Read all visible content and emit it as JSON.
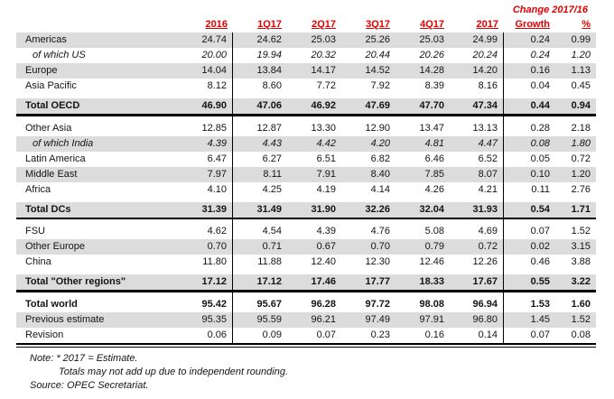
{
  "colors": {
    "accent_red": "#e00000",
    "band_gray": "#dcdcdc",
    "border_black": "#000000"
  },
  "header": {
    "change_title": "Change 2017/16",
    "columns": [
      "2016",
      "1Q17",
      "2Q17",
      "3Q17",
      "4Q17",
      "2017",
      "Growth",
      "%"
    ]
  },
  "table": {
    "rows": [
      {
        "label": "Americas",
        "band": true,
        "values": [
          "24.74",
          "24.62",
          "25.03",
          "25.26",
          "25.03",
          "24.99",
          "0.24",
          "0.99"
        ]
      },
      {
        "label": "of which US",
        "italic": true,
        "values": [
          "20.00",
          "19.94",
          "20.32",
          "20.44",
          "20.26",
          "20.24",
          "0.24",
          "1.20"
        ]
      },
      {
        "label": "Europe",
        "band": true,
        "values": [
          "14.04",
          "13.84",
          "14.17",
          "14.52",
          "14.28",
          "14.20",
          "0.16",
          "1.13"
        ]
      },
      {
        "label": "Asia Pacific",
        "values": [
          "8.12",
          "8.60",
          "7.72",
          "7.92",
          "8.39",
          "8.16",
          "0.04",
          "0.45"
        ]
      },
      {
        "label": "Total OECD",
        "band": true,
        "bold": true,
        "gap_before": true,
        "divider_after": "thick",
        "values": [
          "46.90",
          "47.06",
          "46.92",
          "47.69",
          "47.70",
          "47.34",
          "0.44",
          "0.94"
        ]
      },
      {
        "label": "Other Asia",
        "gap_before": true,
        "values": [
          "12.85",
          "12.87",
          "13.30",
          "12.90",
          "13.47",
          "13.13",
          "0.28",
          "2.18"
        ]
      },
      {
        "label": "of which India",
        "band": true,
        "italic": true,
        "values": [
          "4.39",
          "4.43",
          "4.42",
          "4.20",
          "4.81",
          "4.47",
          "0.08",
          "1.80"
        ]
      },
      {
        "label": "Latin America",
        "values": [
          "6.47",
          "6.27",
          "6.51",
          "6.82",
          "6.46",
          "6.52",
          "0.05",
          "0.72"
        ]
      },
      {
        "label": "Middle East",
        "band": true,
        "values": [
          "7.97",
          "8.11",
          "7.91",
          "8.40",
          "7.85",
          "8.07",
          "0.10",
          "1.20"
        ]
      },
      {
        "label": "Africa",
        "values": [
          "4.10",
          "4.25",
          "4.19",
          "4.14",
          "4.26",
          "4.21",
          "0.11",
          "2.76"
        ]
      },
      {
        "label": "Total DCs",
        "band": true,
        "bold": true,
        "gap_before": true,
        "divider_after": "thick",
        "values": [
          "31.39",
          "31.49",
          "31.90",
          "32.26",
          "32.04",
          "31.93",
          "0.54",
          "1.71"
        ]
      },
      {
        "label": "FSU",
        "gap_before": true,
        "values": [
          "4.62",
          "4.54",
          "4.39",
          "4.76",
          "5.08",
          "4.69",
          "0.07",
          "1.52"
        ]
      },
      {
        "label": "Other Europe",
        "band": true,
        "values": [
          "0.70",
          "0.71",
          "0.67",
          "0.70",
          "0.79",
          "0.72",
          "0.02",
          "3.15"
        ]
      },
      {
        "label": "China",
        "values": [
          "11.80",
          "11.88",
          "12.40",
          "12.30",
          "12.46",
          "12.26",
          "0.46",
          "3.88"
        ]
      },
      {
        "label": "Total \"Other regions\"",
        "band": true,
        "bold": true,
        "gap_before": true,
        "divider_after": "thick",
        "values": [
          "17.12",
          "17.12",
          "17.46",
          "17.77",
          "18.33",
          "17.67",
          "0.55",
          "3.22"
        ]
      },
      {
        "label": "Total world",
        "bold": true,
        "gap_before": true,
        "values": [
          "95.42",
          "95.67",
          "96.28",
          "97.72",
          "98.08",
          "96.94",
          "1.53",
          "1.60"
        ]
      },
      {
        "label": "Previous estimate",
        "band": true,
        "values": [
          "95.35",
          "95.59",
          "96.21",
          "97.49",
          "97.91",
          "96.80",
          "1.45",
          "1.52"
        ]
      },
      {
        "label": "Revision",
        "divider_after": "double",
        "values": [
          "0.06",
          "0.09",
          "0.07",
          "0.23",
          "0.16",
          "0.14",
          "0.07",
          "0.08"
        ]
      }
    ]
  },
  "notes": {
    "lines": [
      "Note: * 2017 = Estimate.",
      "Totals may not add up due to independent rounding.",
      "Source: OPEC Secretariat."
    ]
  }
}
